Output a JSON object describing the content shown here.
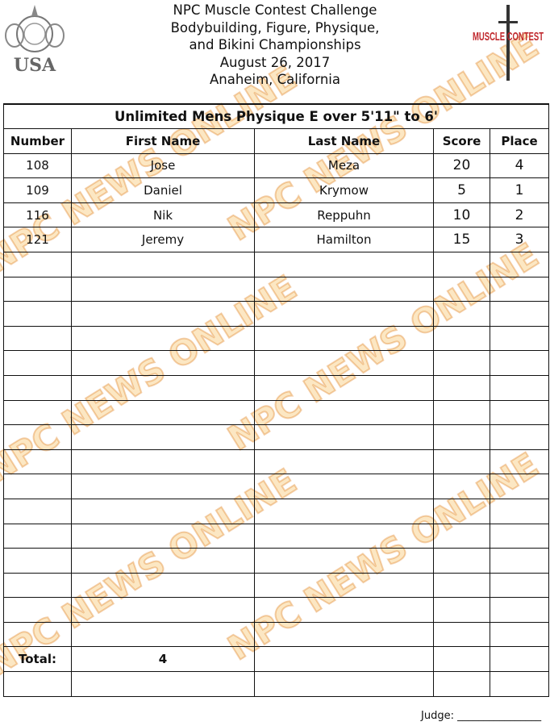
{
  "header": {
    "lines": [
      "NPC Muscle Contest Challenge",
      "Bodybuilding, Figure, Physique,",
      "and Bikini Championships",
      "August 26, 2017",
      "Anaheim, California"
    ]
  },
  "logos": {
    "left": "USA",
    "right": "MUSCLE CONTEST"
  },
  "watermark": "NPC NEWS ONLINE",
  "table": {
    "title": "Unlimited Mens Physique E over 5'11\" to 6'",
    "columns": [
      "Number",
      "First Name",
      "Last Name",
      "Score",
      "Place"
    ],
    "rows": [
      [
        "108",
        "Jose",
        "Meza",
        "20",
        "4"
      ],
      [
        "109",
        "Daniel",
        "Krymow",
        "5",
        "1"
      ],
      [
        "116",
        "Nik",
        "Reppuhn",
        "10",
        "2"
      ],
      [
        "121",
        "Jeremy",
        "Hamilton",
        "15",
        "3"
      ]
    ],
    "empty_rows": 16,
    "total_label": "Total:",
    "total_value": "4"
  },
  "footer": {
    "judge_label": "Judge: ________________"
  }
}
